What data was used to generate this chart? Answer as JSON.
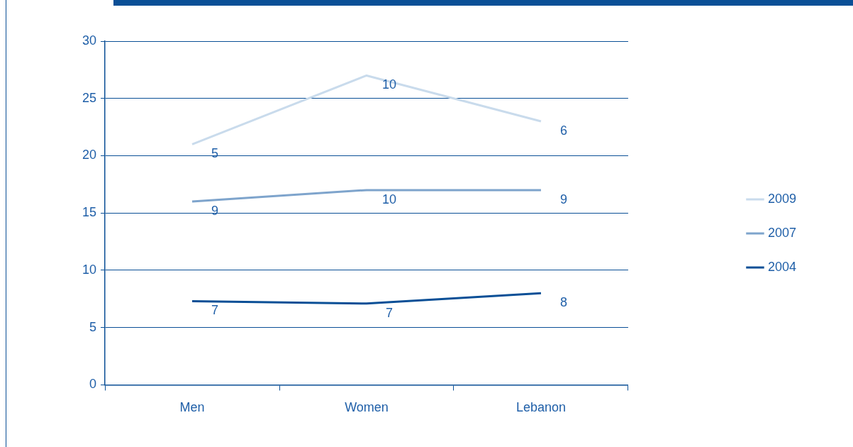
{
  "chart_data": {
    "type": "line",
    "categories": [
      "Men",
      "Women",
      "Lebanon"
    ],
    "series": [
      {
        "name": "2009",
        "color": "#c9dbec",
        "values": [
          21,
          27,
          23
        ]
      },
      {
        "name": "2007",
        "color": "#7ea4cc",
        "values": [
          16,
          17,
          17
        ]
      },
      {
        "name": "2004",
        "color": "#0a4f96",
        "values": [
          7.3,
          7.1,
          8
        ]
      }
    ],
    "annotations": [
      {
        "text": "5",
        "x": "Men",
        "y": 21
      },
      {
        "text": "10",
        "x": "Women",
        "y": 27
      },
      {
        "text": "6",
        "x": "Lebanon",
        "y": 23
      },
      {
        "text": "9",
        "x": "Men",
        "y": 16
      },
      {
        "text": "10",
        "x": "Women",
        "y": 17
      },
      {
        "text": "9",
        "x": "Lebanon",
        "y": 17
      },
      {
        "text": "7",
        "x": "Men",
        "y": 7.3
      },
      {
        "text": "7",
        "x": "Women",
        "y": 7.1
      },
      {
        "text": "8",
        "x": "Lebanon",
        "y": 8
      }
    ],
    "ylim": [
      0,
      30
    ],
    "yticks": [
      0,
      5,
      10,
      15,
      20,
      25,
      30
    ],
    "grid": "y",
    "legend": "right",
    "marker": "none",
    "line_style": "solid"
  }
}
